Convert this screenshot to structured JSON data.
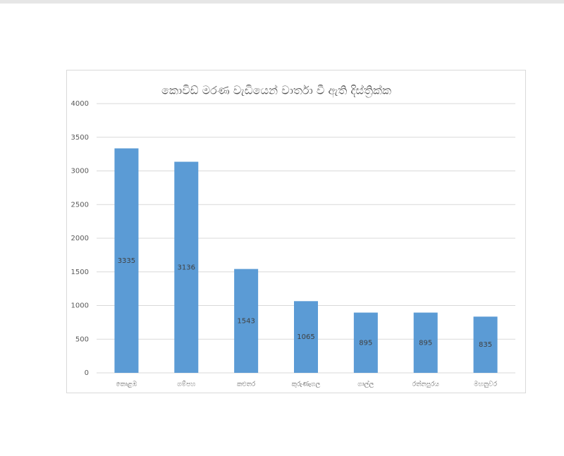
{
  "chart_data": {
    "type": "bar",
    "title": "කොවිඩ් මරණ වැඩියෙන් වාර්තා වී ඇති දිස්ත්‍රික්ක",
    "categories": [
      "කොළඹ",
      "ගම්පහ",
      "කළුතර",
      "කුරුණෑගල",
      "ගාල්ල",
      "රත්නපුරය",
      "මහනුවර"
    ],
    "values": [
      3335,
      3136,
      1543,
      1065,
      895,
      895,
      835
    ],
    "color": "#5b9bd5",
    "ylim": [
      0,
      4000
    ],
    "yticks": [
      0,
      500,
      1000,
      1500,
      2000,
      2500,
      3000,
      3500,
      4000
    ],
    "grid": true,
    "data_labels": true
  }
}
